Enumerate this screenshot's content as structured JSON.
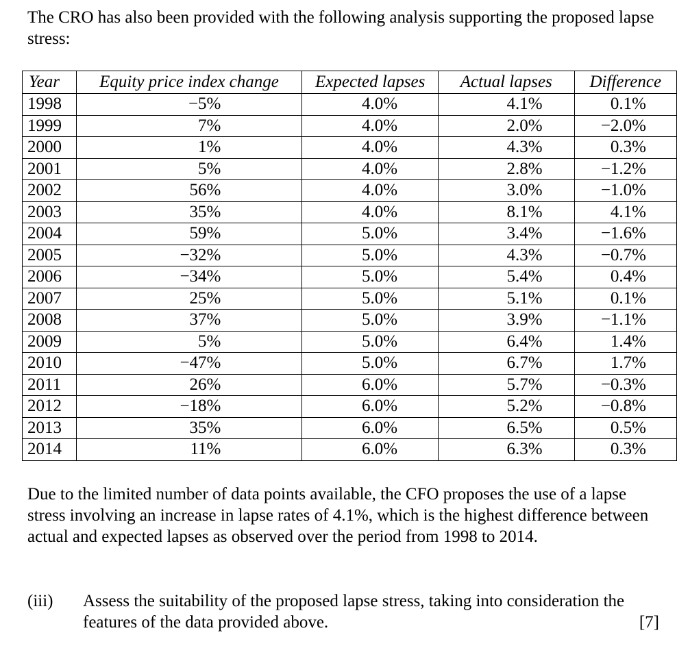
{
  "intro": "The CRO has also been provided with the following analysis supporting the proposed lapse stress:",
  "table": {
    "headers": [
      "Year",
      "Equity price index change",
      "Expected lapses",
      "Actual lapses",
      "Difference"
    ],
    "rows": [
      [
        "1998",
        "−5%",
        "4.0%",
        "4.1%",
        "0.1%"
      ],
      [
        "1999",
        "7%",
        "4.0%",
        "2.0%",
        "−2.0%"
      ],
      [
        "2000",
        "1%",
        "4.0%",
        "4.3%",
        "0.3%"
      ],
      [
        "2001",
        "5%",
        "4.0%",
        "2.8%",
        "−1.2%"
      ],
      [
        "2002",
        "56%",
        "4.0%",
        "3.0%",
        "−1.0%"
      ],
      [
        "2003",
        "35%",
        "4.0%",
        "8.1%",
        "4.1%"
      ],
      [
        "2004",
        "59%",
        "5.0%",
        "3.4%",
        "−1.6%"
      ],
      [
        "2005",
        "−32%",
        "5.0%",
        "4.3%",
        "−0.7%"
      ],
      [
        "2006",
        "−34%",
        "5.0%",
        "5.4%",
        "0.4%"
      ],
      [
        "2007",
        "25%",
        "5.0%",
        "5.1%",
        "0.1%"
      ],
      [
        "2008",
        "37%",
        "5.0%",
        "3.9%",
        "−1.1%"
      ],
      [
        "2009",
        "5%",
        "5.0%",
        "6.4%",
        "1.4%"
      ],
      [
        "2010",
        "−47%",
        "5.0%",
        "6.7%",
        "1.7%"
      ],
      [
        "2011",
        "26%",
        "6.0%",
        "5.7%",
        "−0.3%"
      ],
      [
        "2012",
        "−18%",
        "6.0%",
        "5.2%",
        "−0.8%"
      ],
      [
        "2013",
        "35%",
        "6.0%",
        "6.5%",
        "0.5%"
      ],
      [
        "2014",
        "11%",
        "6.0%",
        "6.3%",
        "0.3%"
      ]
    ]
  },
  "paragraph": "Due to the limited number of data points available, the CFO proposes the use of a lapse stress involving an increase in lapse rates of 4.1%, which is the highest difference between actual and expected lapses as observed over the period from 1998 to 2014.",
  "question": {
    "label": "(iii)",
    "text": "Assess the suitability of the proposed lapse stress, taking into consideration the features of the data provided above.",
    "marks": "[7]"
  }
}
